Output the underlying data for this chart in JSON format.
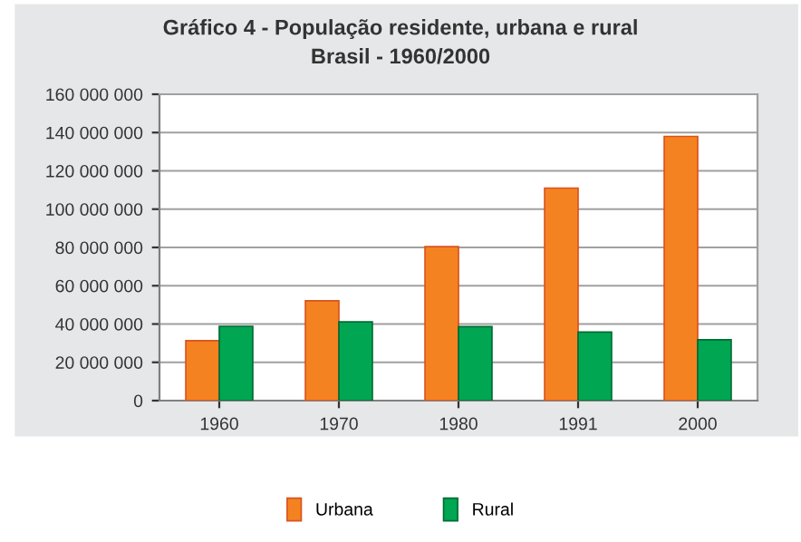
{
  "chart_data": {
    "type": "bar",
    "title": "Gráfico 4 - População residente, urbana e rural",
    "subtitle": "Brasil - 1960/2000",
    "categories": [
      "1960",
      "1970",
      "1980",
      "1991",
      "2000"
    ],
    "series": [
      {
        "name": "Urbana",
        "color": "#f58220",
        "values": [
          31300000,
          52100000,
          80400000,
          111000000,
          138000000
        ]
      },
      {
        "name": "Rural",
        "color": "#00a651",
        "values": [
          38800000,
          41100000,
          38600000,
          35800000,
          31800000
        ]
      }
    ],
    "ylim": [
      0,
      160000000
    ],
    "yticks": [
      0,
      {
        "value": 20000000,
        "label": "20 000 000"
      },
      {
        "value": 40000000,
        "label": "40 000 000"
      },
      {
        "value": 60000000,
        "label": "60 000 000"
      },
      {
        "value": 80000000,
        "label": "80 000 000"
      },
      {
        "value": 100000000,
        "label": "100 000 000"
      },
      {
        "value": 120000000,
        "label": "120 000 000"
      },
      {
        "value": 140000000,
        "label": "140 000 000"
      },
      {
        "value": 160000000,
        "label": "160 000 000"
      }
    ],
    "grid": "y",
    "legend": "bottom"
  }
}
